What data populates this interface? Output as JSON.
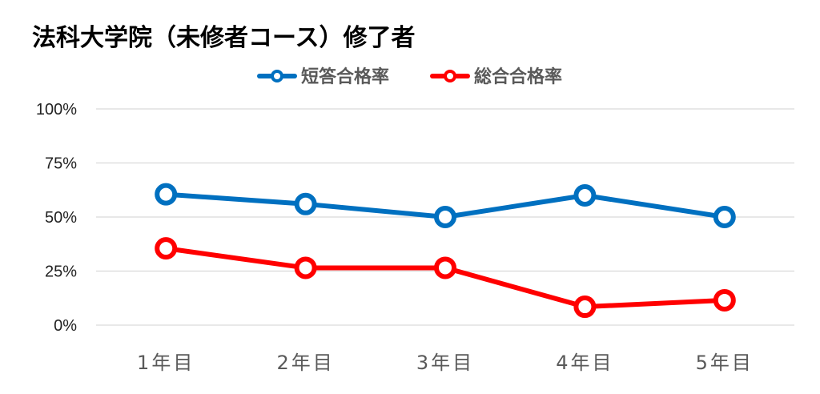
{
  "chart_data": {
    "type": "line",
    "title": "法科大学院（未修者コース）修了者",
    "categories": [
      "1年目",
      "2年目",
      "3年目",
      "4年目",
      "5年目"
    ],
    "series": [
      {
        "name": "短答合格率",
        "color": "#0070C0",
        "values": [
          60.5,
          56,
          50,
          60,
          50
        ]
      },
      {
        "name": "総合合格率",
        "color": "#FF0000",
        "values": [
          35.5,
          26.5,
          26.5,
          8.5,
          11.5
        ]
      }
    ],
    "yticks": [
      "0%",
      "25%",
      "50%",
      "75%",
      "100%"
    ],
    "ylim": [
      0,
      100
    ],
    "grid": true,
    "legend_position": "top-center"
  }
}
